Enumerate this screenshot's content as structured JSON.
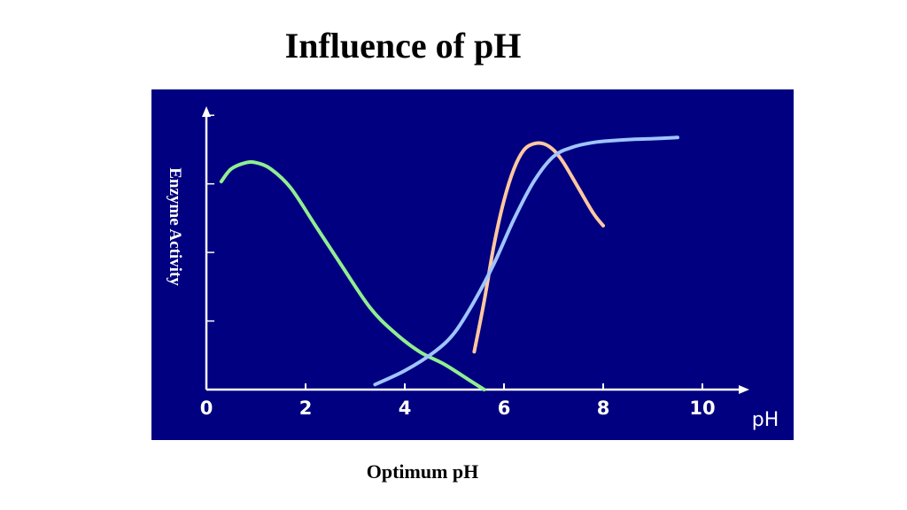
{
  "slide": {
    "title": "Influence of pH",
    "caption": "Optimum pH"
  },
  "colors": {
    "panel_background": "#000080",
    "axis": "#ffffff",
    "series_green": "#90ee90",
    "series_orange": "#ffc8a0",
    "series_blue": "#a0c4ff"
  },
  "chart_data": {
    "type": "line",
    "title": "",
    "xlabel": "pH",
    "ylabel": "Enzyme Activity",
    "xlim": [
      0,
      11
    ],
    "ylim": [
      0,
      4.2
    ],
    "x_ticks": [
      0,
      2,
      4,
      6,
      8,
      10
    ],
    "x_tick_labels": [
      "0",
      "2",
      "4",
      "6",
      "8",
      "10"
    ],
    "y_ticks": [
      1,
      2,
      3,
      4
    ],
    "y_tick_labels": [],
    "grid": false,
    "legend": "none",
    "series": [
      {
        "color": "#90ee90",
        "x": [
          0.3,
          0.5,
          0.8,
          1.0,
          1.3,
          1.7,
          2.2,
          2.7,
          3.3,
          3.8,
          4.3,
          4.8,
          5.3,
          5.6
        ],
        "y": [
          3.3,
          3.5,
          3.6,
          3.6,
          3.5,
          3.2,
          2.6,
          2.0,
          1.3,
          0.9,
          0.6,
          0.4,
          0.15,
          0.0
        ]
      },
      {
        "color": "#ffc8a0",
        "x": [
          5.4,
          5.6,
          5.8,
          6.0,
          6.2,
          6.4,
          6.6,
          6.8,
          7.0,
          7.2,
          7.5,
          7.8,
          8.0
        ],
        "y": [
          0.6,
          1.4,
          2.3,
          3.0,
          3.5,
          3.8,
          3.9,
          3.9,
          3.8,
          3.6,
          3.2,
          2.8,
          2.6
        ]
      },
      {
        "color": "#a0c4ff",
        "x": [
          3.4,
          4.0,
          4.6,
          5.0,
          5.4,
          5.8,
          6.2,
          6.6,
          7.0,
          7.4,
          7.8,
          8.2,
          8.6,
          9.0,
          9.5
        ],
        "y": [
          0.08,
          0.3,
          0.6,
          0.9,
          1.4,
          2.0,
          2.7,
          3.3,
          3.7,
          3.85,
          3.92,
          3.95,
          3.97,
          3.98,
          4.0
        ]
      }
    ]
  }
}
